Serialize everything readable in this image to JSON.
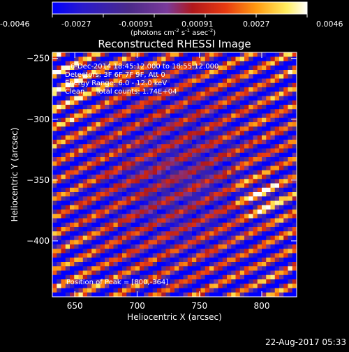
{
  "colorbar": {
    "ticks": [
      "-0.0046",
      "-0.0027",
      "-0.00091",
      "0.00091",
      "0.0027",
      "0.0046"
    ],
    "unit_label": "(photons cm",
    "unit_exp1": "-2",
    "unit_mid": " s",
    "unit_exp2": "-1",
    "unit_mid2": " asec",
    "unit_exp3": "-2",
    "unit_end": ")",
    "range": [
      -0.0046,
      0.0046
    ],
    "colors": [
      "#0000ff",
      "#3a1aa8",
      "#4b2a8a",
      "#7a3fa0",
      "#c01d20",
      "#e84010",
      "#ffa010",
      "#ffff80",
      "#ffffff"
    ]
  },
  "chart_data": {
    "type": "heatmap",
    "title": "Reconstructed RHESSI Image",
    "xlabel": "Heliocentric X (arcsec)",
    "ylabel": "Heliocentric Y (arcsec)",
    "xlim": [
      632,
      828
    ],
    "ylim": [
      -446,
      -245
    ],
    "xticks": [
      650,
      700,
      750,
      800
    ],
    "yticks": [
      -250,
      -300,
      -350,
      -400
    ],
    "peak": [
      800,
      -364
    ],
    "annotations": [
      "6-Dec-2014 18:45:12.000 to 18:55:12.000",
      "Detectors: 3F 6F 7F 9F, Att 0",
      "Energy Range: 6.0 - 12.0 keV",
      "Clean     Total counts: 1.74E+04"
    ],
    "peak_label": "Position of Peak = [800,-364]"
  },
  "footer": {
    "timestamp": "22-Aug-2017 05:33"
  }
}
